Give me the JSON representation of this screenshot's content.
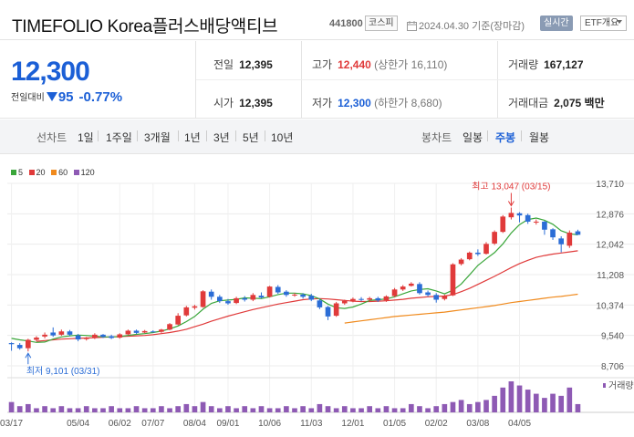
{
  "header": {
    "stock_name": "TIMEFOLIO Korea플러스배당액티브",
    "stock_code": "441800",
    "market": "코스피",
    "date_text": "2024.04.30 기준(장마감)",
    "realtime_label": "실시간",
    "etf_info_label": "ETF개요"
  },
  "price": {
    "current": "12,300",
    "change_label": "전일대비",
    "change_value": "95",
    "change_pct": "-0.77%",
    "color": "#1b5fd6"
  },
  "stats": {
    "prev_close_label": "전일",
    "prev_close": "12,395",
    "high_label": "고가",
    "high": "12,440",
    "upper_limit": "(상한가 16,110)",
    "volume_label": "거래량",
    "volume": "167,127",
    "open_label": "시가",
    "open": "12,395",
    "low_label": "저가",
    "low": "12,300",
    "lower_limit": "(하한가 8,680)",
    "amount_label": "거래대금",
    "amount": "2,075 백만"
  },
  "line_tabs": {
    "label": "선차트",
    "items": [
      "1일",
      "1주일",
      "3개월",
      "1년",
      "3년",
      "5년",
      "10년"
    ]
  },
  "candle_tabs": {
    "label": "봉차트",
    "items": [
      "일봉",
      "주봉",
      "월봉"
    ],
    "active": "주봉"
  },
  "legend": [
    {
      "label": "5",
      "color": "#3aa63a"
    },
    {
      "label": "20",
      "color": "#e03a3a"
    },
    {
      "label": "60",
      "color": "#f08a1d"
    },
    {
      "label": "120",
      "color": "#8e5ab4"
    }
  ],
  "chart_data": {
    "type": "candlestick",
    "y_ticks": [
      "13,710",
      "12,876",
      "12,042",
      "11,208",
      "10,374",
      "9,540",
      "8,706"
    ],
    "ylim": [
      8706,
      13710
    ],
    "x_ticks": [
      "03/17",
      "05/04",
      "06/02",
      "07/07",
      "08/04",
      "09/01",
      "10/06",
      "11/03",
      "12/01",
      "01/05",
      "02/02",
      "03/08",
      "04/05"
    ],
    "max_annotation": "최고 13,047 (03/15)",
    "min_annotation": "최저 9,101 (03/31)",
    "volume_label": "거래량",
    "up_color": "#e03a3a",
    "down_color": "#2b6dd6",
    "candles": [
      [
        9330,
        9300,
        9350,
        9120
      ],
      [
        9280,
        9190,
        9330,
        9150
      ],
      [
        9190,
        9420,
        9450,
        9101
      ],
      [
        9420,
        9480,
        9520,
        9380
      ],
      [
        9510,
        9560,
        9620,
        9460
      ],
      [
        9620,
        9540,
        9760,
        9500
      ],
      [
        9560,
        9650,
        9700,
        9530
      ],
      [
        9650,
        9560,
        9690,
        9520
      ],
      [
        9540,
        9430,
        9580,
        9380
      ],
      [
        9440,
        9470,
        9500,
        9400
      ],
      [
        9470,
        9560,
        9600,
        9440
      ],
      [
        9560,
        9500,
        9580,
        9470
      ],
      [
        9520,
        9470,
        9560,
        9440
      ],
      [
        9480,
        9570,
        9600,
        9450
      ],
      [
        9570,
        9670,
        9700,
        9550
      ],
      [
        9670,
        9610,
        9700,
        9580
      ],
      [
        9620,
        9660,
        9690,
        9600
      ],
      [
        9650,
        9640,
        9680,
        9620
      ],
      [
        9640,
        9700,
        9720,
        9610
      ],
      [
        9700,
        9850,
        9880,
        9680
      ],
      [
        9840,
        10080,
        10150,
        9820
      ],
      [
        10090,
        10310,
        10350,
        10060
      ],
      [
        10300,
        10340,
        10380,
        10250
      ],
      [
        10320,
        10750,
        10780,
        10300
      ],
      [
        10740,
        10600,
        10800,
        10520
      ],
      [
        10600,
        10480,
        10650,
        10430
      ],
      [
        10480,
        10420,
        10540,
        10380
      ],
      [
        10430,
        10560,
        10600,
        10400
      ],
      [
        10560,
        10520,
        10620,
        10470
      ],
      [
        10520,
        10650,
        10700,
        10480
      ],
      [
        10630,
        10580,
        10720,
        10550
      ],
      [
        10600,
        10880,
        10900,
        10580
      ],
      [
        10870,
        10720,
        10920,
        10680
      ],
      [
        10740,
        10650,
        10780,
        10600
      ],
      [
        10660,
        10660,
        10700,
        10600
      ],
      [
        10660,
        10600,
        10700,
        10550
      ],
      [
        10630,
        10520,
        10680,
        10480
      ],
      [
        10500,
        10310,
        10540,
        10260
      ],
      [
        10320,
        10060,
        10350,
        9960
      ],
      [
        10080,
        10420,
        10460,
        10050
      ],
      [
        10420,
        10490,
        10520,
        10380
      ],
      [
        10490,
        10540,
        10580,
        10450
      ],
      [
        10540,
        10520,
        10590,
        10480
      ],
      [
        10520,
        10560,
        10600,
        10480
      ],
      [
        10560,
        10500,
        10600,
        10460
      ],
      [
        10500,
        10610,
        10640,
        10460
      ],
      [
        10620,
        10800,
        10840,
        10590
      ],
      [
        10800,
        10880,
        10920,
        10760
      ],
      [
        10900,
        10960,
        11000,
        10880
      ],
      [
        10950,
        10700,
        11000,
        10660
      ],
      [
        10720,
        10650,
        10770,
        10610
      ],
      [
        10650,
        10520,
        10700,
        10440
      ],
      [
        10540,
        10620,
        10660,
        10500
      ],
      [
        10640,
        11490,
        11520,
        10620
      ],
      [
        11500,
        11620,
        11660,
        11460
      ],
      [
        11630,
        11810,
        11840,
        11600
      ],
      [
        11810,
        11770,
        11900,
        11720
      ],
      [
        11780,
        12050,
        12100,
        11760
      ],
      [
        12060,
        12380,
        12420,
        12020
      ],
      [
        12380,
        12800,
        12840,
        12350
      ],
      [
        12780,
        12900,
        13047,
        12720
      ],
      [
        12890,
        12830,
        12920,
        12640
      ],
      [
        12840,
        12660,
        12880,
        12600
      ],
      [
        12650,
        12660,
        12720,
        12580
      ],
      [
        12660,
        12440,
        12680,
        12300
      ],
      [
        12450,
        12230,
        12480,
        12160
      ],
      [
        12200,
        12040,
        12260,
        11820
      ],
      [
        12000,
        12360,
        12420,
        11940
      ],
      [
        12395,
        12300,
        12440,
        12300
      ]
    ],
    "ma5": [
      9460,
      9420,
      9390,
      9350,
      9360,
      9440,
      9500,
      9530,
      9550,
      9540,
      9520,
      9500,
      9500,
      9510,
      9540,
      9570,
      9590,
      9620,
      9660,
      9720,
      9800,
      9920,
      10060,
      10260,
      10420,
      10490,
      10510,
      10530,
      10570,
      10560,
      10550,
      10600,
      10660,
      10700,
      10700,
      10680,
      10630,
      10540,
      10400,
      10300,
      10280,
      10320,
      10400,
      10500,
      10520,
      10540,
      10600,
      10680,
      10760,
      10800,
      10820,
      10760,
      10680,
      10780,
      10950,
      11200,
      11460,
      11640,
      11810,
      12050,
      12350,
      12580,
      12720,
      12760,
      12700,
      12590,
      12410,
      12330,
      12300
    ],
    "ma20": [
      null,
      null,
      null,
      9380,
      9400,
      9420,
      9440,
      9450,
      9460,
      9470,
      9480,
      9490,
      9500,
      9510,
      9520,
      9530,
      9540,
      9560,
      9590,
      9620,
      9660,
      9710,
      9780,
      9850,
      9930,
      10000,
      10070,
      10130,
      10190,
      10250,
      10300,
      10350,
      10400,
      10440,
      10480,
      10520,
      10540,
      10550,
      10540,
      10520,
      10500,
      10480,
      10470,
      10470,
      10480,
      10490,
      10510,
      10530,
      10560,
      10580,
      10600,
      10610,
      10620,
      10660,
      10740,
      10830,
      10940,
      11050,
      11160,
      11280,
      11400,
      11510,
      11600,
      11680,
      11730,
      11770,
      11800,
      11830,
      11860
    ],
    "ma60": [
      null,
      null,
      null,
      null,
      null,
      null,
      null,
      null,
      null,
      null,
      null,
      null,
      null,
      null,
      null,
      null,
      null,
      null,
      null,
      null,
      null,
      null,
      null,
      null,
      null,
      null,
      null,
      null,
      null,
      null,
      null,
      null,
      null,
      null,
      null,
      null,
      null,
      null,
      null,
      null,
      9880,
      9910,
      9940,
      9970,
      10000,
      10030,
      10060,
      10080,
      10100,
      10120,
      10140,
      10160,
      10180,
      10210,
      10240,
      10270,
      10300,
      10330,
      10360,
      10400,
      10440,
      10470,
      10500,
      10530,
      10560,
      10590,
      10610,
      10640,
      10670
    ],
    "volumes": [
      5,
      3,
      4,
      2,
      3,
      2,
      3,
      2,
      2,
      3,
      2,
      2,
      3,
      2,
      2,
      3,
      2,
      2,
      3,
      2,
      3,
      4,
      3,
      5,
      3,
      2,
      3,
      2,
      3,
      2,
      3,
      2,
      2,
      3,
      2,
      3,
      2,
      4,
      3,
      2,
      3,
      2,
      2,
      3,
      2,
      3,
      2,
      2,
      4,
      3,
      2,
      3,
      4,
      5,
      6,
      4,
      5,
      6,
      8,
      12,
      15,
      13,
      11,
      9,
      7,
      9,
      8,
      12,
      4
    ]
  }
}
